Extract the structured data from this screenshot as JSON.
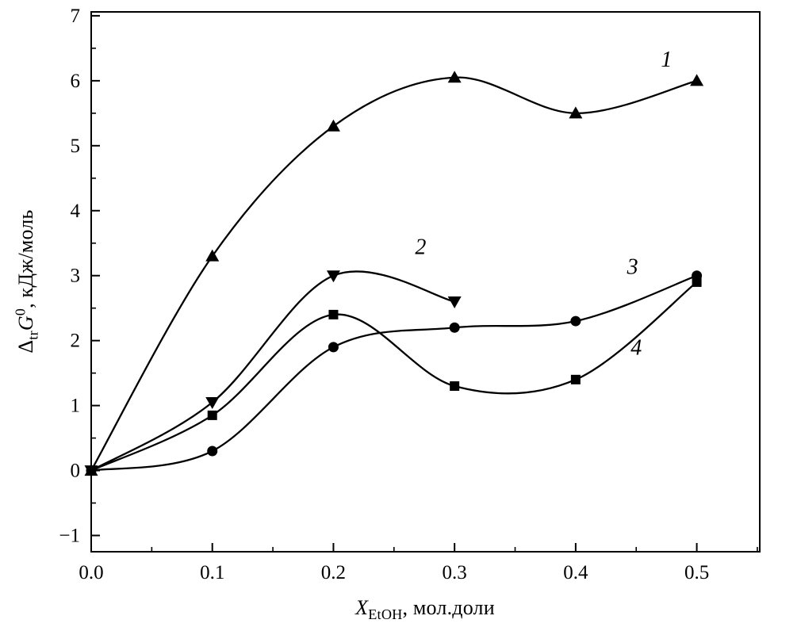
{
  "page": {
    "background": "#ffffff",
    "foreground": "#000000"
  },
  "chart_data": {
    "type": "line",
    "title": "",
    "xlabel": "X_EtOH, мол.доли",
    "ylabel": "Δ_tr G^0, кДж/моль",
    "xlim": [
      0,
      0.552
    ],
    "ylim": [
      -1.25,
      7.06
    ],
    "grid": false,
    "legend_position": "none",
    "color": "#000000",
    "x_ticks": [
      {
        "value": 0.0,
        "label": "0.0"
      },
      {
        "value": 0.1,
        "label": "0.1"
      },
      {
        "value": 0.2,
        "label": "0.2"
      },
      {
        "value": 0.3,
        "label": "0.3"
      },
      {
        "value": 0.4,
        "label": "0.4"
      },
      {
        "value": 0.5,
        "label": "0.5"
      }
    ],
    "x_minor_ticks": [
      0.05,
      0.15,
      0.25,
      0.35,
      0.45,
      0.55
    ],
    "y_ticks": [
      {
        "value": -1,
        "label": "−1"
      },
      {
        "value": 0,
        "label": "0"
      },
      {
        "value": 1,
        "label": "1"
      },
      {
        "value": 2,
        "label": "2"
      },
      {
        "value": 3,
        "label": "3"
      },
      {
        "value": 4,
        "label": "4"
      },
      {
        "value": 5,
        "label": "5"
      },
      {
        "value": 6,
        "label": "6"
      },
      {
        "value": 7,
        "label": "7"
      }
    ],
    "y_minor_ticks": [
      -0.5,
      0.5,
      1.5,
      2.5,
      3.5,
      4.5,
      5.5,
      6.5
    ],
    "series": [
      {
        "name": "1",
        "marker": "triangle-up",
        "x": [
          0,
          0.1,
          0.2,
          0.3,
          0.4,
          0.5
        ],
        "values": [
          0,
          3.3,
          5.3,
          6.05,
          5.5,
          6.0
        ]
      },
      {
        "name": "2",
        "marker": "triangle-down",
        "x": [
          0,
          0.1,
          0.2,
          0.3
        ],
        "values": [
          0,
          1.05,
          3.0,
          2.6
        ]
      },
      {
        "name": "3",
        "marker": "circle",
        "x": [
          0,
          0.1,
          0.2,
          0.3,
          0.4,
          0.5
        ],
        "values": [
          0,
          0.3,
          1.9,
          2.2,
          2.3,
          3.0
        ]
      },
      {
        "name": "4",
        "marker": "square",
        "x": [
          0,
          0.1,
          0.2,
          0.3,
          0.4,
          0.5
        ],
        "values": [
          0,
          0.85,
          2.4,
          1.3,
          1.4,
          2.9
        ]
      }
    ],
    "annotations": [
      {
        "text": "1",
        "x": 0.475,
        "y": 6.22
      },
      {
        "text": "2",
        "x": 0.272,
        "y": 3.33
      },
      {
        "text": "3",
        "x": 0.447,
        "y": 3.03
      },
      {
        "text": "4",
        "x": 0.45,
        "y": 1.78
      }
    ]
  },
  "chart_labels": {
    "y": {
      "prefix": "Δ",
      "sub": "tr",
      "symbol": "G",
      "sup": "0",
      "rest": ", кДж/моль"
    },
    "x": {
      "symbol": "X",
      "sub": "EtOH",
      "rest": ", мол.доли"
    }
  }
}
